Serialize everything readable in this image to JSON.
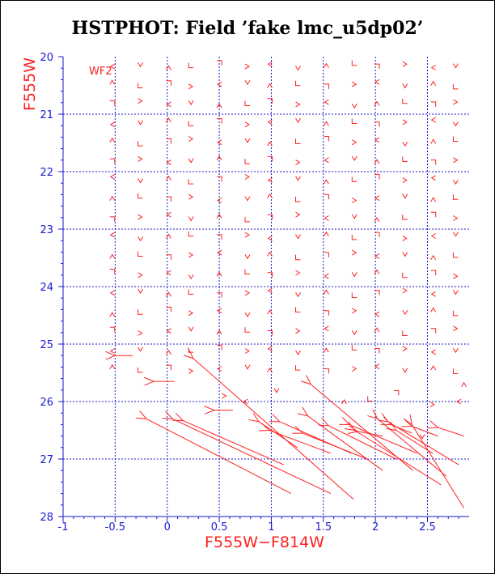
{
  "window": {
    "title": "HSTPHOT: Field ’fake lmc_u5dp02’"
  },
  "colors": {
    "axis": "#1a1acc",
    "grid": "#1a1acc",
    "vectors": "#ff2020",
    "label": "#ff2020",
    "title": "#000000"
  },
  "chart_data": {
    "type": "scatter",
    "title": "HSTPHOT: Field ’fake lmc_u5dp02’",
    "xlabel": "F555W−F814W",
    "ylabel": "F555W",
    "xlim": [
      -1.0,
      2.9
    ],
    "ylim": [
      28,
      20
    ],
    "y_inverted": true,
    "grid": true,
    "annotation": "WF2",
    "x_ticks": [
      -1,
      -0.5,
      0,
      0.5,
      1,
      1.5,
      2,
      2.5
    ],
    "x_tick_labels": [
      "-1",
      "-0.5",
      "0",
      "0.5",
      "1",
      "1.5",
      "2",
      "2.5"
    ],
    "y_ticks": [
      20,
      21,
      22,
      23,
      24,
      25,
      26,
      27,
      28
    ],
    "y_tick_labels": [
      "20",
      "21",
      "22",
      "23",
      "24",
      "25",
      "26",
      "27",
      "28"
    ],
    "description": "Input vs. recovered positions of artificial stars, drawn as arrows",
    "vectors": [
      {
        "x0": 2.36,
        "y0": 27.2,
        "x1": 1.38,
        "y1": 25.7
      },
      {
        "x0": 1.79,
        "y0": 27.7,
        "x1": 0.25,
        "y1": 25.25
      },
      {
        "x0": 1.19,
        "y0": 27.6,
        "x1": -0.2,
        "y1": 26.3
      },
      {
        "x0": 1.57,
        "y0": 27.6,
        "x1": 0.05,
        "y1": 26.3
      },
      {
        "x0": 2.85,
        "y0": 27.85,
        "x1": 2.35,
        "y1": 26.4
      },
      {
        "x0": 2.63,
        "y0": 27.45,
        "x1": 1.8,
        "y1": 26.5
      },
      {
        "x0": 2.68,
        "y0": 27.3,
        "x1": 2.02,
        "y1": 26.3
      },
      {
        "x0": 2.07,
        "y0": 27.2,
        "x1": 1.35,
        "y1": 26.25
      },
      {
        "x0": 1.77,
        "y0": 26.9,
        "x1": 1.08,
        "y1": 26.35
      },
      {
        "x0": 2.2,
        "y0": 27.0,
        "x1": 1.55,
        "y1": 26.42
      },
      {
        "x0": 2.8,
        "y0": 27.1,
        "x1": 2.12,
        "y1": 26.35
      },
      {
        "x0": 2.4,
        "y0": 26.9,
        "x1": 1.75,
        "y1": 26.4
      },
      {
        "x0": 1.25,
        "y0": 26.8,
        "x1": 0.88,
        "y1": 26.35
      },
      {
        "x0": 1.57,
        "y0": 26.9,
        "x1": 0.98,
        "y1": 26.5
      },
      {
        "x0": 1.92,
        "y0": 27.0,
        "x1": 1.3,
        "y1": 26.55
      },
      {
        "x0": 2.55,
        "y0": 26.9,
        "x1": 2.2,
        "y1": 26.5
      },
      {
        "x0": 1.12,
        "y0": 27.1,
        "x1": 0.15,
        "y1": 26.33
      },
      {
        "x0": 2.6,
        "y0": 26.6,
        "x1": 2.35,
        "y1": 26.43
      },
      {
        "x0": 2.85,
        "y0": 26.6,
        "x1": 2.6,
        "y1": 26.45
      },
      {
        "x0": 2.07,
        "y0": 26.6,
        "x1": 1.83,
        "y1": 26.52
      },
      {
        "x0": 2.35,
        "y0": 26.55,
        "x1": 2.15,
        "y1": 26.4
      },
      {
        "x0": -0.33,
        "y0": 25.2,
        "x1": -0.5,
        "y1": 25.2
      },
      {
        "x0": 0.07,
        "y0": 25.65,
        "x1": -0.13,
        "y1": 25.65
      },
      {
        "x0": 0.63,
        "y0": 26.15,
        "x1": 0.45,
        "y1": 26.15
      }
    ]
  }
}
